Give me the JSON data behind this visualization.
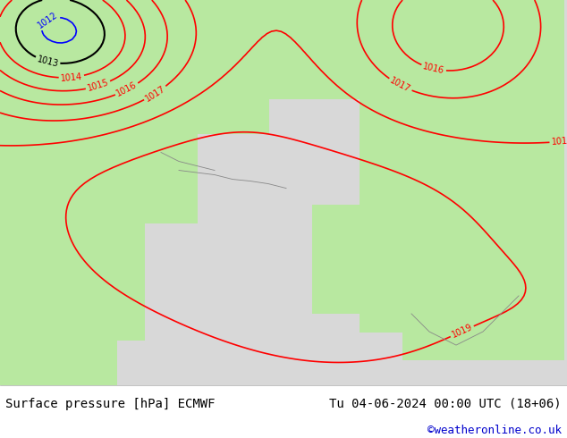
{
  "title_left": "Surface pressure [hPa] ECMWF",
  "title_right": "Tu 04-06-2024 00:00 UTC (18+06)",
  "credit": "©weatheronline.co.uk",
  "bg_color": "#d0d0d0",
  "land_color": "#b8e8a0",
  "sea_color": "#d8d8d8",
  "footer_bg": "#ffffff",
  "footer_text_color": "#000000",
  "credit_color": "#0000cc",
  "red_isobar_color": "#ff0000",
  "black_isobar_color": "#000000",
  "blue_isobar_color": "#0000ff",
  "figsize": [
    6.34,
    4.9
  ],
  "dpi": 100
}
